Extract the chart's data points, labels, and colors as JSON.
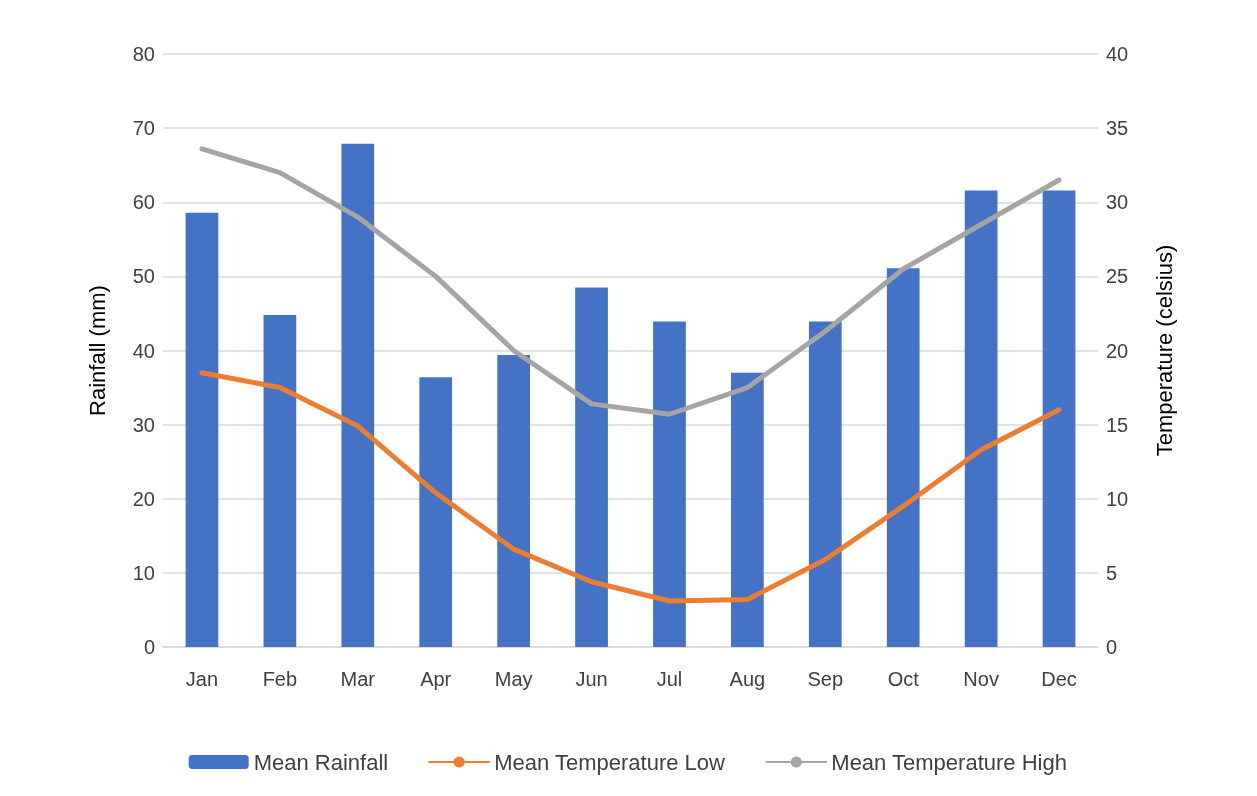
{
  "chart_data": {
    "type": "bar",
    "categories": [
      "Jan",
      "Feb",
      "Mar",
      "Apr",
      "May",
      "Jun",
      "Jul",
      "Aug",
      "Sep",
      "Oct",
      "Nov",
      "Dec"
    ],
    "series": [
      {
        "name": "Mean Rainfall",
        "color": "#4472c4",
        "values": [
          58.6,
          44.8,
          67.9,
          36.4,
          39.4,
          48.5,
          43.9,
          37.0,
          43.9,
          51.1,
          61.6,
          61.6
        ]
      },
      {
        "name": "Mean Temperature Low",
        "type": "line",
        "axis": "y2",
        "color": "#ed7d31",
        "values": [
          18.5,
          17.5,
          14.9,
          10.4,
          6.6,
          4.4,
          3.1,
          3.2,
          5.9,
          9.5,
          13.3,
          16.0
        ]
      },
      {
        "name": "Mean Temperature High",
        "type": "line",
        "axis": "y2",
        "color": "#a5a5a5",
        "values": [
          33.6,
          32.0,
          29.0,
          25.0,
          20.0,
          16.4,
          15.7,
          17.5,
          21.3,
          25.5,
          28.5,
          31.5
        ]
      }
    ],
    "ylabel": "Rainfall (mm)",
    "y2label": "Temperature (celsius)",
    "ylim": [
      0,
      80
    ],
    "yticks": [
      0,
      10,
      20,
      30,
      40,
      50,
      60,
      70,
      80
    ],
    "y2lim": [
      0,
      40
    ],
    "y2ticks": [
      0,
      5,
      10,
      15,
      20,
      25,
      30,
      35,
      40
    ],
    "grid": "y",
    "legend": "bottom",
    "marker": "none",
    "line_style": "solid"
  }
}
